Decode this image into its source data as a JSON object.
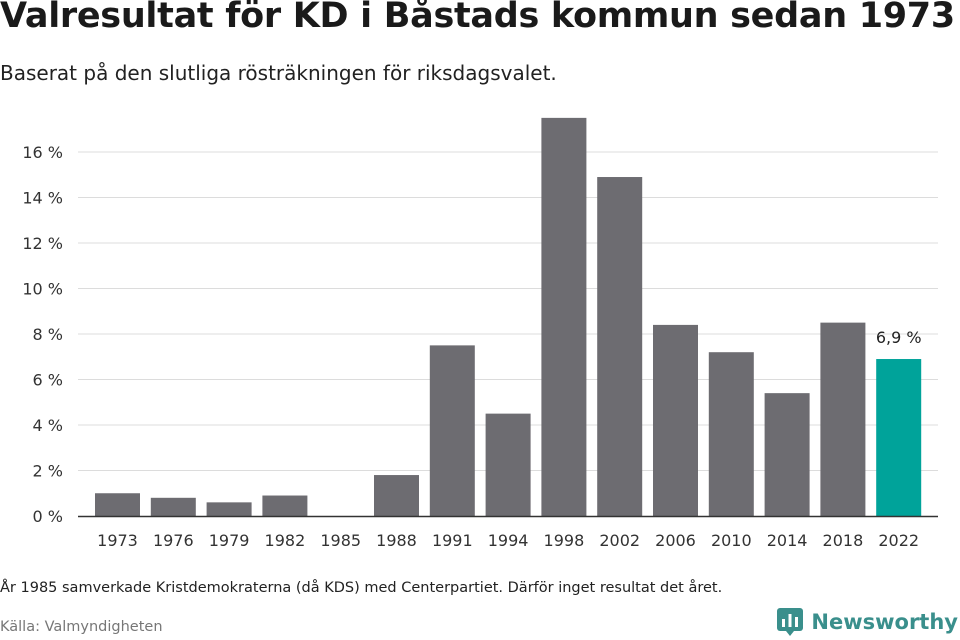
{
  "title": "Valresultat för KD i Båstads kommun sedan 1973",
  "subtitle": "Baserat på den slutliga rösträkningen för riksdagsvalet.",
  "footnote": "År 1985 samverkade Kristdemokraterna (då KDS) med Centerpartiet. Därför inget resultat det året.",
  "source": "Källa: Valmyndigheten",
  "brand": {
    "name": "Newsworthy",
    "logo_icon": "newsworthy-logo-icon",
    "color": "#3a8f8c"
  },
  "chart_data": {
    "type": "bar",
    "categories": [
      "1973",
      "1976",
      "1979",
      "1982",
      "1985",
      "1988",
      "1991",
      "1994",
      "1998",
      "2002",
      "2006",
      "2010",
      "2014",
      "2018",
      "2022"
    ],
    "values": [
      1.0,
      0.8,
      0.6,
      0.9,
      null,
      1.8,
      7.5,
      4.5,
      17.5,
      14.9,
      8.4,
      7.2,
      5.4,
      8.5,
      6.9
    ],
    "yticks": [
      "0 %",
      "2 %",
      "4 %",
      "6 %",
      "8 %",
      "10 %",
      "12 %",
      "14 %",
      "16 %"
    ],
    "ylim": [
      0,
      18
    ],
    "grid": true,
    "colors": {
      "default": "#6d6c71",
      "highlight": "#00a39a"
    },
    "highlight_index": 14,
    "data_labels": [
      {
        "index": 14,
        "text": "6,9 %"
      }
    ]
  }
}
